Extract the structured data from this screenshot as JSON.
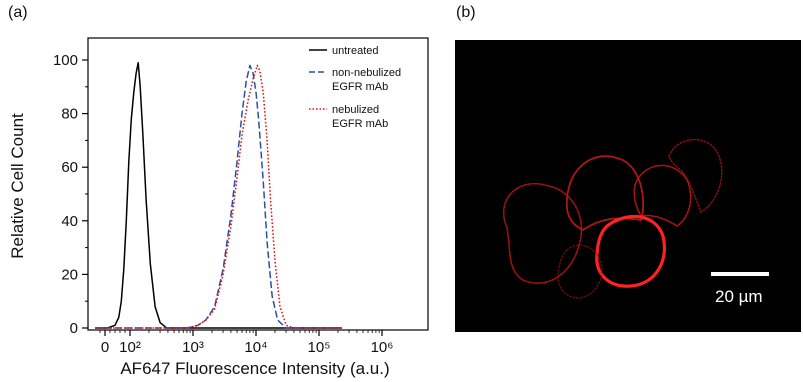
{
  "panels": {
    "a_label": "(a)",
    "b_label": "(b)"
  },
  "chart_data": {
    "type": "line",
    "xlabel": "AF647 Fluorescence Intensity (a.u.)",
    "ylabel": "Relative Cell Count",
    "xscale": "biexponential",
    "xlim": [
      -40,
      1000000
    ],
    "ylim": [
      0,
      100
    ],
    "x_ticks": [
      {
        "value": 0,
        "label": "0"
      },
      {
        "value": 100,
        "label": "10²"
      },
      {
        "value": 1000,
        "label": "10³"
      },
      {
        "value": 10000,
        "label": "10⁴"
      },
      {
        "value": 100000,
        "label": "10⁵"
      },
      {
        "value": 1000000,
        "label": "10⁶"
      }
    ],
    "y_ticks": [
      0,
      20,
      40,
      60,
      80,
      100
    ],
    "legend_position": "top-right",
    "series": [
      {
        "name": "untreated",
        "color": "#000000",
        "style": "solid",
        "points": [
          [
            -40,
            0
          ],
          [
            10,
            0
          ],
          [
            40,
            1
          ],
          [
            55,
            4
          ],
          [
            65,
            10
          ],
          [
            75,
            22
          ],
          [
            85,
            40
          ],
          [
            95,
            62
          ],
          [
            105,
            78
          ],
          [
            115,
            88
          ],
          [
            125,
            95
          ],
          [
            135,
            99
          ],
          [
            145,
            90
          ],
          [
            160,
            72
          ],
          [
            180,
            48
          ],
          [
            210,
            24
          ],
          [
            250,
            8
          ],
          [
            300,
            2
          ],
          [
            380,
            0
          ],
          [
            1000,
            0
          ],
          [
            230000,
            0
          ]
        ]
      },
      {
        "name": "non-nebulized EGFR mAb",
        "color": "#2b4fa8",
        "style": "dashed",
        "points": [
          [
            -40,
            0
          ],
          [
            800,
            0
          ],
          [
            1200,
            1
          ],
          [
            1600,
            3
          ],
          [
            2200,
            8
          ],
          [
            3000,
            22
          ],
          [
            4000,
            42
          ],
          [
            5000,
            62
          ],
          [
            6000,
            80
          ],
          [
            7000,
            92
          ],
          [
            8000,
            98
          ],
          [
            9000,
            95
          ],
          [
            10000,
            88
          ],
          [
            11000,
            78
          ],
          [
            13000,
            55
          ],
          [
            15000,
            32
          ],
          [
            18000,
            12
          ],
          [
            22000,
            3
          ],
          [
            30000,
            0
          ],
          [
            230000,
            0
          ]
        ]
      },
      {
        "name": "nebulized EGFR mAb",
        "color": "#e01010",
        "style": "dotted",
        "points": [
          [
            -40,
            0
          ],
          [
            800,
            0
          ],
          [
            1200,
            1
          ],
          [
            1600,
            3
          ],
          [
            2200,
            7
          ],
          [
            3000,
            20
          ],
          [
            4000,
            38
          ],
          [
            5000,
            56
          ],
          [
            6000,
            72
          ],
          [
            7500,
            85
          ],
          [
            9000,
            93
          ],
          [
            10500,
            98
          ],
          [
            11500,
            96
          ],
          [
            13000,
            88
          ],
          [
            15000,
            70
          ],
          [
            17000,
            48
          ],
          [
            20000,
            25
          ],
          [
            24000,
            8
          ],
          [
            30000,
            1
          ],
          [
            40000,
            0
          ],
          [
            230000,
            0
          ]
        ]
      }
    ]
  },
  "legend": {
    "untreated": "untreated",
    "non_nebulized_line1": "non-nebulized",
    "non_nebulized_line2": "EGFR mAb",
    "nebulized_line1": "nebulized",
    "nebulized_line2": "EGFR mAb"
  },
  "micrograph": {
    "scale_bar_label": "20 µm",
    "scale_bar_length_um": 20,
    "background_color": "#000000",
    "stain_color": "#e01818"
  }
}
